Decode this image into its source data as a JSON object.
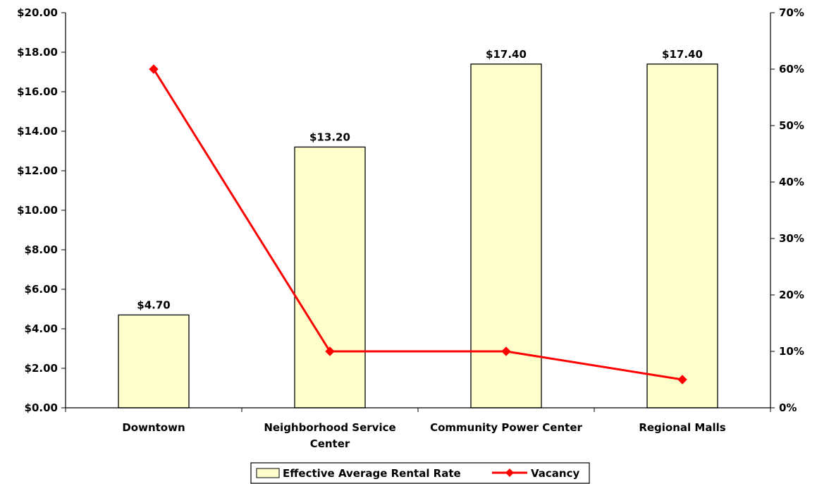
{
  "chart_data": {
    "type": "bar",
    "categories": [
      [
        "Downtown"
      ],
      [
        "Neighborhood Service",
        "Center"
      ],
      [
        "Community Power Center"
      ],
      [
        "Regional Malls"
      ]
    ],
    "series": [
      {
        "name": "Effective Average Rental Rate",
        "type": "bar",
        "axis": "left",
        "values": [
          4.7,
          13.2,
          17.4,
          17.4
        ],
        "labels": [
          "$4.70",
          "$13.20",
          "$17.40",
          "$17.40"
        ],
        "color": "#FFFFCC"
      },
      {
        "name": "Vacancy",
        "type": "line",
        "axis": "right",
        "values": [
          0.6,
          0.1,
          0.1,
          0.05
        ],
        "color": "#FF0000"
      }
    ],
    "left_axis": {
      "ylim": [
        0,
        20
      ],
      "ticks": [
        "$0.00",
        "$2.00",
        "$4.00",
        "$6.00",
        "$8.00",
        "$10.00",
        "$12.00",
        "$14.00",
        "$16.00",
        "$18.00",
        "$20.00"
      ]
    },
    "right_axis": {
      "ylim": [
        0,
        0.7
      ],
      "ticks": [
        "0%",
        "10%",
        "20%",
        "30%",
        "40%",
        "50%",
        "60%",
        "70%"
      ]
    },
    "grid": false,
    "legend": "bottom"
  }
}
